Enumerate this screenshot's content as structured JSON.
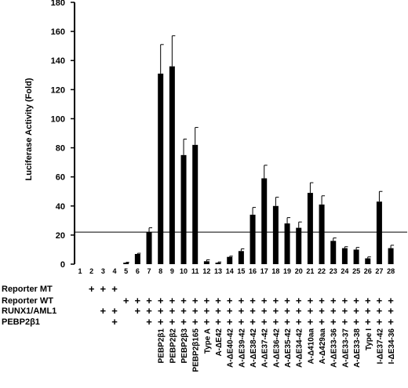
{
  "chart_data": {
    "type": "bar",
    "ylabel": "Luciferase Activity (Fold)",
    "ylim": [
      0,
      180
    ],
    "yticks": [
      0,
      20,
      40,
      60,
      80,
      100,
      120,
      140,
      160,
      180
    ],
    "reference_line": 22,
    "categories": [
      "1",
      "2",
      "3",
      "4",
      "5",
      "6",
      "7",
      "8",
      "9",
      "10",
      "11",
      "12",
      "13",
      "14",
      "15",
      "16",
      "17",
      "18",
      "19",
      "20",
      "21",
      "22",
      "23",
      "24",
      "25",
      "26",
      "27",
      "28"
    ],
    "values": [
      0,
      0,
      0,
      0,
      1,
      7,
      22,
      131,
      136,
      75,
      82,
      2,
      1,
      5,
      9,
      34,
      59,
      40,
      28,
      25,
      49,
      41,
      16,
      11,
      10,
      4,
      43,
      11
    ],
    "errors": [
      0,
      0,
      0,
      0,
      0.3,
      0.5,
      3,
      20,
      21,
      11,
      12,
      1,
      0.5,
      0.5,
      1.5,
      5,
      9,
      6,
      4,
      4,
      7,
      6,
      2,
      1,
      1.5,
      1,
      7,
      2
    ],
    "rows": [
      {
        "label": "Reporter MT",
        "marks": [
          "",
          "+",
          "+",
          "+",
          "",
          "",
          "",
          "",
          "",
          "",
          "",
          "",
          "",
          "",
          "",
          "",
          "",
          "",
          "",
          "",
          "",
          "",
          "",
          "",
          "",
          "",
          "",
          ""
        ]
      },
      {
        "label": "Reporter WT",
        "marks": [
          "",
          "",
          "",
          "",
          "+",
          "+",
          "+",
          "+",
          "+",
          "+",
          "+",
          "+",
          "+",
          "+",
          "+",
          "+",
          "+",
          "+",
          "+",
          "+",
          "+",
          "+",
          "+",
          "+",
          "+",
          "+",
          "+",
          "+"
        ]
      },
      {
        "label": "RUNX1/AML1",
        "marks": [
          "",
          "",
          "+",
          "+",
          "",
          "+",
          "+",
          "+",
          "+",
          "+",
          "+",
          "+",
          "+",
          "+",
          "+",
          "+",
          "+",
          "+",
          "+",
          "+",
          "+",
          "+",
          "+",
          "+",
          "+",
          "+",
          "+",
          "+"
        ]
      },
      {
        "label": "PEBP2β1",
        "marks": [
          "",
          "",
          "",
          "+",
          "",
          "",
          "+",
          "+",
          "+",
          "+",
          "+",
          "+",
          "+",
          "+",
          "+",
          "+",
          "+",
          "+",
          "+",
          "+",
          "+",
          "+",
          "+",
          "+",
          "+",
          "+",
          "+",
          "+"
        ]
      }
    ],
    "conditions": [
      "",
      "",
      "",
      "",
      "",
      "",
      "",
      "PEBP2β1",
      "PEBP2β2",
      "PEBP2β3",
      "PEBP2β165",
      "Type A",
      "A-ΔE42",
      "A-ΔE40-42",
      "A-ΔE39-42",
      "A-ΔE38-42",
      "A-ΔE37-42",
      "A-ΔE36-42",
      "A-ΔE35-42",
      "A-ΔE34-42",
      "A-Δ410aa",
      "A-Δ429aa",
      "A-ΔE33-36",
      "A-ΔE33-37",
      "A-ΔE33-38",
      "Type I",
      "I-ΔE37-42",
      "I-ΔE34-36"
    ],
    "grid": false,
    "legend": "none"
  }
}
